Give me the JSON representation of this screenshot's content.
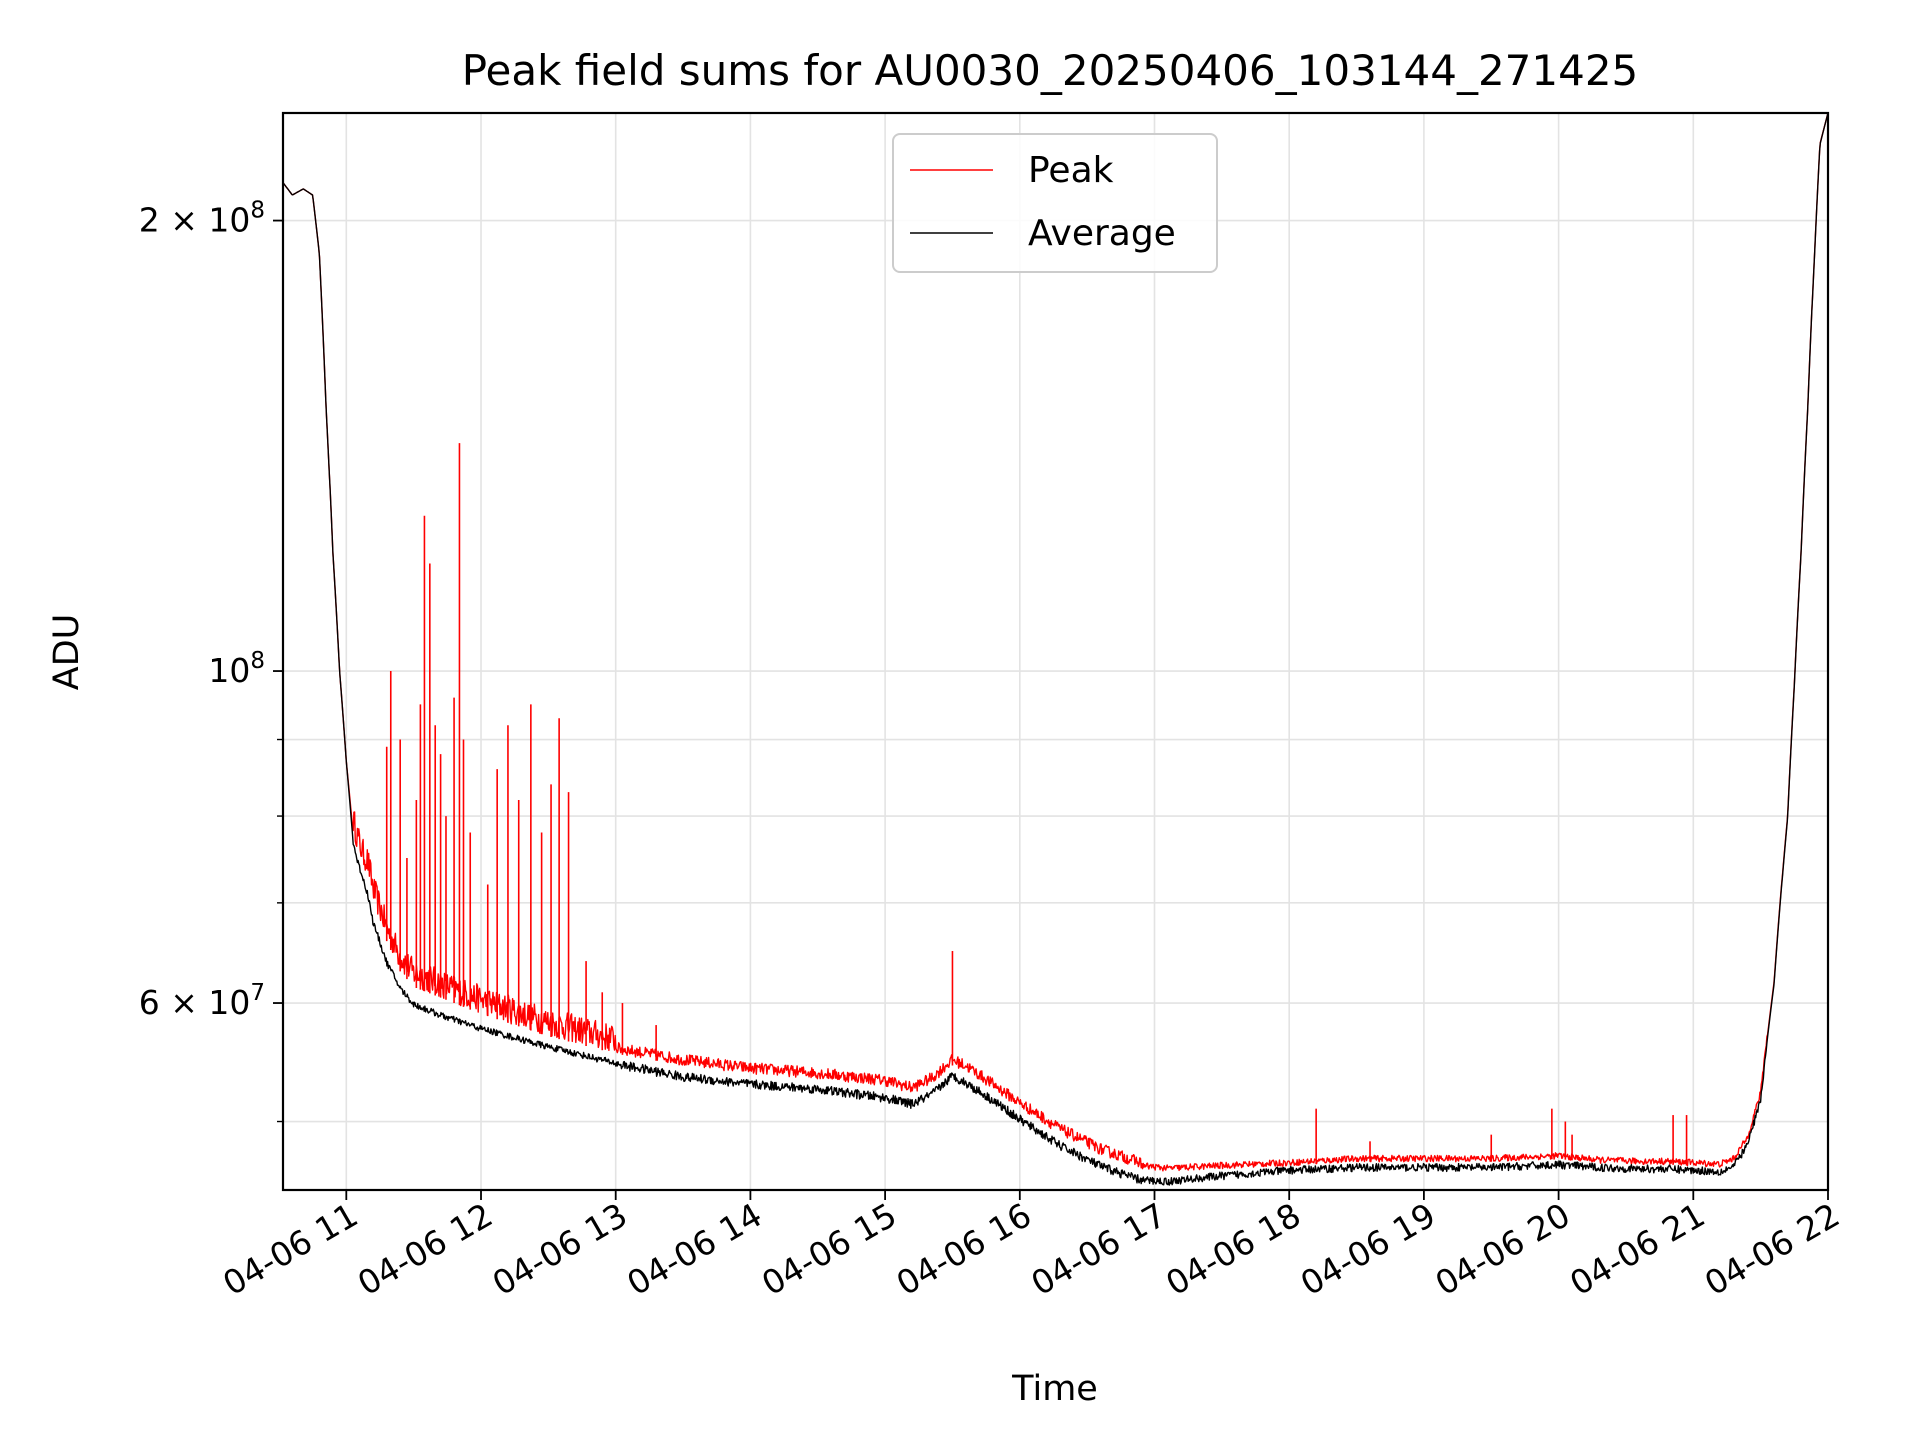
{
  "chart_data": {
    "type": "line",
    "title": "Peak field sums for AU0030_20250406_103144_271425",
    "xlabel": "Time",
    "ylabel": "ADU",
    "yscale": "log",
    "xlim": [
      10.53,
      22.0
    ],
    "ylim": [
      45000000,
      236000000
    ],
    "grid": true,
    "legend_position": "top-center",
    "x_ticks": [
      {
        "value": 11,
        "label": "04-06 11"
      },
      {
        "value": 12,
        "label": "04-06 12"
      },
      {
        "value": 13,
        "label": "04-06 13"
      },
      {
        "value": 14,
        "label": "04-06 14"
      },
      {
        "value": 15,
        "label": "04-06 15"
      },
      {
        "value": 16,
        "label": "04-06 16"
      },
      {
        "value": 17,
        "label": "04-06 17"
      },
      {
        "value": 18,
        "label": "04-06 18"
      },
      {
        "value": 19,
        "label": "04-06 19"
      },
      {
        "value": 20,
        "label": "04-06 20"
      },
      {
        "value": 21,
        "label": "04-06 21"
      },
      {
        "value": 22,
        "label": "04-06 22"
      }
    ],
    "y_major_ticks": [
      {
        "value": 100000000,
        "mantissa": "",
        "base": "10",
        "exp": "8"
      },
      {
        "value": 200000000,
        "mantissa": "2 × ",
        "base": "10",
        "exp": "8"
      },
      {
        "value": 60000000,
        "mantissa": "6 × ",
        "base": "10",
        "exp": "7"
      }
    ],
    "y_minor_gridlines": [
      50000000,
      70000000,
      80000000,
      90000000
    ],
    "series": [
      {
        "name": "Peak",
        "color": "#ff0000",
        "x": [
          10.53,
          10.6,
          10.68,
          10.75,
          10.8,
          10.85,
          10.9,
          10.95,
          11.0,
          11.05,
          11.08,
          11.12,
          11.16,
          11.2,
          11.3,
          11.4,
          11.5,
          11.7,
          12.0,
          12.5,
          13.0,
          13.5,
          14.0,
          14.5,
          15.0,
          15.2,
          15.35,
          15.5,
          15.6,
          15.8,
          16.0,
          16.3,
          16.6,
          16.9,
          17.1,
          17.5,
          18.0,
          18.5,
          19.0,
          19.5,
          20.0,
          20.3,
          20.6,
          20.8,
          21.0,
          21.2,
          21.3,
          21.4,
          21.5,
          21.6,
          21.7,
          21.75,
          21.8,
          21.85,
          21.9,
          21.94,
          22.0
        ],
        "values": [
          212000000,
          208000000,
          210000000,
          208000000,
          190000000,
          150000000,
          120000000,
          100000000,
          87000000,
          78000000,
          76000000,
          74000000,
          73000000,
          70000000,
          66000000,
          63000000,
          61500000,
          60500000,
          59000000,
          57000000,
          55500000,
          54500000,
          53800000,
          53400000,
          52800000,
          52200000,
          53000000,
          54500000,
          54000000,
          52500000,
          51000000,
          49000000,
          47500000,
          46500000,
          46300000,
          46500000,
          46700000,
          47000000,
          47000000,
          47000000,
          47200000,
          46900000,
          46800000,
          46800000,
          46700000,
          46600000,
          47000000,
          48500000,
          52000000,
          62000000,
          80000000,
          98000000,
          120000000,
          150000000,
          190000000,
          225000000,
          236000000
        ],
        "spikes": [
          {
            "x": 11.3,
            "y": 89000000
          },
          {
            "x": 11.33,
            "y": 100000000
          },
          {
            "x": 11.4,
            "y": 90000000
          },
          {
            "x": 11.45,
            "y": 75000000
          },
          {
            "x": 11.52,
            "y": 82000000
          },
          {
            "x": 11.55,
            "y": 95000000
          },
          {
            "x": 11.58,
            "y": 127000000
          },
          {
            "x": 11.62,
            "y": 118000000
          },
          {
            "x": 11.66,
            "y": 92000000
          },
          {
            "x": 11.7,
            "y": 88000000
          },
          {
            "x": 11.74,
            "y": 80000000
          },
          {
            "x": 11.8,
            "y": 96000000
          },
          {
            "x": 11.84,
            "y": 142000000
          },
          {
            "x": 11.87,
            "y": 90000000
          },
          {
            "x": 11.92,
            "y": 78000000
          },
          {
            "x": 12.05,
            "y": 72000000
          },
          {
            "x": 12.12,
            "y": 86000000
          },
          {
            "x": 12.2,
            "y": 92000000
          },
          {
            "x": 12.28,
            "y": 82000000
          },
          {
            "x": 12.37,
            "y": 95000000
          },
          {
            "x": 12.45,
            "y": 78000000
          },
          {
            "x": 12.52,
            "y": 84000000
          },
          {
            "x": 12.58,
            "y": 93000000
          },
          {
            "x": 12.65,
            "y": 83000000
          },
          {
            "x": 12.78,
            "y": 64000000
          },
          {
            "x": 12.9,
            "y": 61000000
          },
          {
            "x": 13.05,
            "y": 60000000
          },
          {
            "x": 13.3,
            "y": 58000000
          },
          {
            "x": 15.5,
            "y": 65000000
          },
          {
            "x": 18.2,
            "y": 51000000
          },
          {
            "x": 18.6,
            "y": 48500000
          },
          {
            "x": 19.5,
            "y": 49000000
          },
          {
            "x": 19.95,
            "y": 51000000
          },
          {
            "x": 20.05,
            "y": 50000000
          },
          {
            "x": 20.1,
            "y": 49000000
          },
          {
            "x": 20.85,
            "y": 50500000
          },
          {
            "x": 20.95,
            "y": 50500000
          }
        ]
      },
      {
        "name": "Average",
        "color": "#000000",
        "x": [
          10.53,
          10.6,
          10.68,
          10.75,
          10.8,
          10.85,
          10.9,
          10.95,
          11.0,
          11.05,
          11.08,
          11.12,
          11.16,
          11.2,
          11.3,
          11.4,
          11.5,
          11.7,
          12.0,
          12.5,
          13.0,
          13.5,
          14.0,
          14.5,
          15.0,
          15.2,
          15.35,
          15.5,
          15.6,
          15.8,
          16.0,
          16.3,
          16.6,
          16.9,
          17.1,
          17.5,
          18.0,
          18.5,
          19.0,
          19.5,
          20.0,
          20.3,
          20.6,
          20.8,
          21.0,
          21.2,
          21.3,
          21.4,
          21.5,
          21.6,
          21.7,
          21.75,
          21.8,
          21.85,
          21.9,
          21.94,
          22.0
        ],
        "values": [
          212000000,
          208000000,
          210000000,
          208000000,
          190000000,
          150000000,
          120000000,
          100000000,
          87000000,
          77000000,
          75000000,
          73000000,
          71000000,
          68000000,
          64000000,
          61500000,
          60000000,
          59000000,
          57800000,
          56200000,
          54800000,
          53700000,
          53100000,
          52700000,
          52000000,
          51500000,
          52300000,
          53800000,
          53200000,
          51800000,
          50300000,
          48300000,
          46800000,
          45800000,
          45700000,
          46100000,
          46500000,
          46700000,
          46700000,
          46700000,
          46900000,
          46700000,
          46600000,
          46600000,
          46500000,
          46400000,
          46800000,
          48300000,
          51800000,
          61800000,
          79800000,
          97800000,
          119800000,
          149800000,
          189800000,
          224800000,
          236000000
        ]
      }
    ]
  }
}
